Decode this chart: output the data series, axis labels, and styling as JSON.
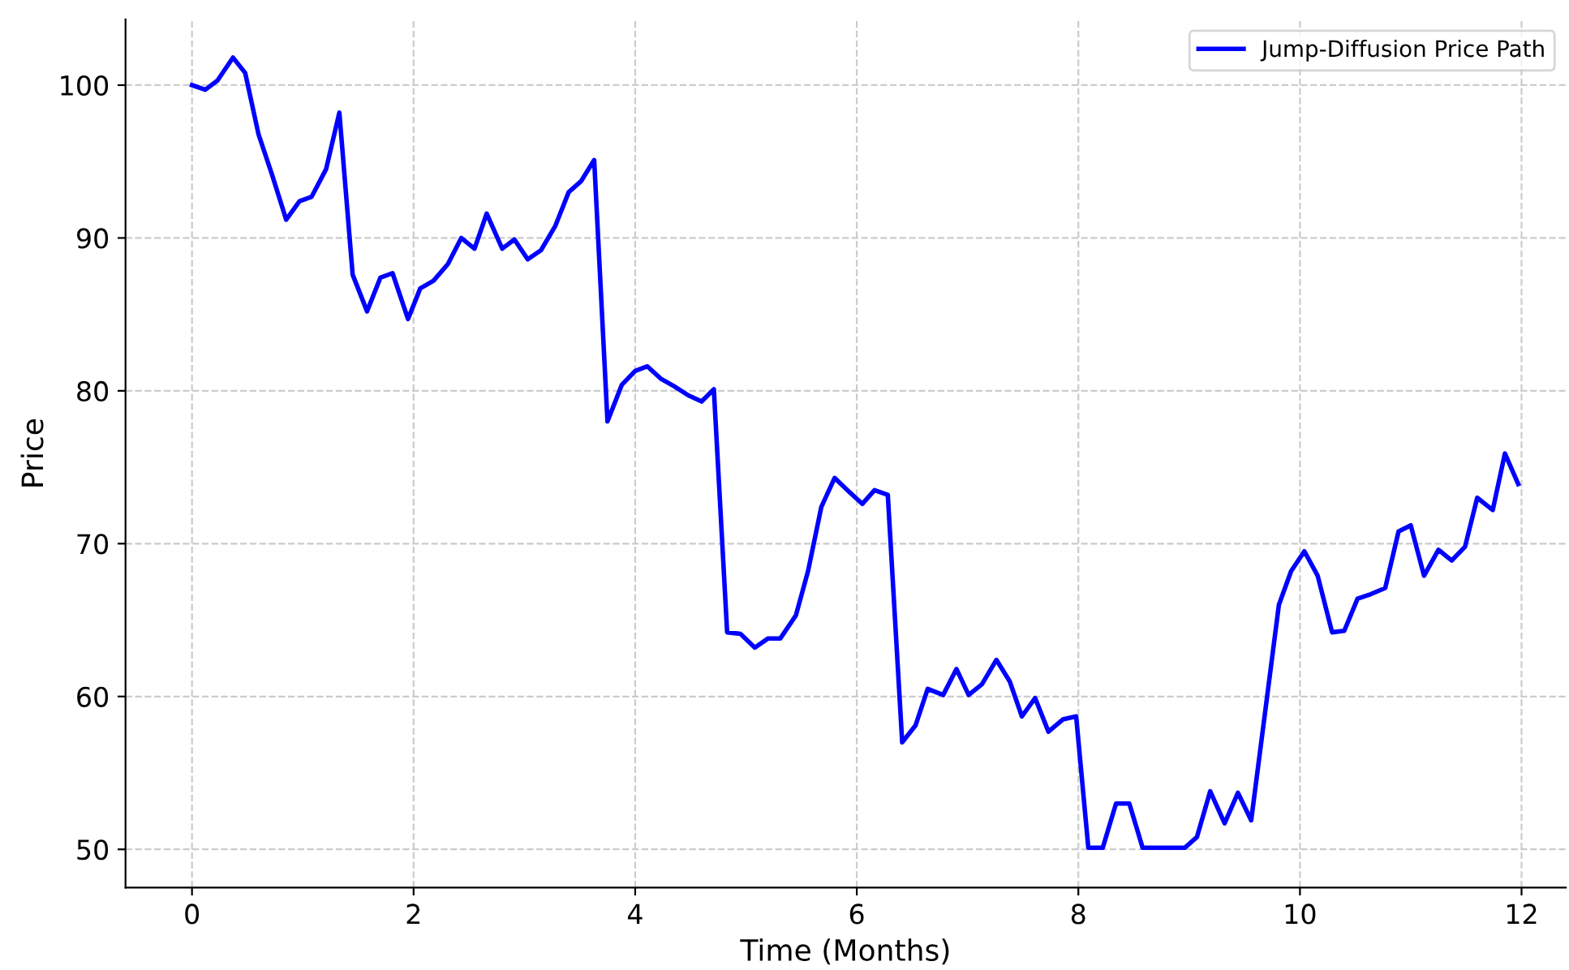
{
  "chart_data": {
    "type": "line",
    "xlabel": "Time (Months)",
    "ylabel": "Price",
    "xlim": [
      -0.6,
      12.4
    ],
    "ylim": [
      47.5,
      104.3
    ],
    "xticks": [
      0,
      2,
      4,
      6,
      8,
      10,
      12
    ],
    "yticks": [
      50,
      60,
      70,
      80,
      90,
      100
    ],
    "grid": true,
    "legend": "top right",
    "line_style": "solid",
    "marker": "none",
    "series": [
      {
        "name": "Jump-Diffusion Price Path",
        "color": "#0000ff",
        "x": [
          0,
          0.12,
          0.23,
          0.37,
          0.48,
          0.6,
          0.72,
          0.85,
          0.97,
          1.08,
          1.21,
          1.33,
          1.45,
          1.58,
          1.7,
          1.81,
          1.95,
          2.06,
          2.18,
          2.31,
          2.43,
          2.55,
          2.66,
          2.8,
          2.91,
          3.03,
          3.15,
          3.28,
          3.4,
          3.51,
          3.63,
          3.75,
          3.88,
          4.0,
          4.11,
          4.23,
          4.35,
          4.48,
          4.6,
          4.71,
          4.83,
          4.95,
          5.08,
          5.2,
          5.31,
          5.45,
          5.56,
          5.68,
          5.8,
          5.93,
          6.05,
          6.16,
          6.28,
          6.41,
          6.53,
          6.64,
          6.78,
          6.9,
          7.01,
          7.13,
          7.26,
          7.38,
          7.49,
          7.61,
          7.73,
          7.86,
          7.98,
          8.09,
          8.22,
          8.34,
          8.46,
          8.58,
          8.7,
          8.83,
          8.96,
          9.07,
          9.19,
          9.32,
          9.44,
          9.56,
          9.67,
          9.81,
          9.92,
          10.04,
          10.16,
          10.29,
          10.4,
          10.52,
          10.64,
          10.77,
          10.89,
          11.0,
          11.12,
          11.25,
          11.37,
          11.49,
          11.6,
          11.74,
          11.85,
          11.97
        ],
        "values": [
          100,
          99.7,
          100.3,
          101.8,
          100.8,
          96.8,
          94.2,
          91.2,
          92.4,
          92.7,
          94.5,
          98.2,
          87.6,
          85.2,
          87.4,
          87.7,
          84.7,
          86.7,
          87.2,
          88.3,
          90,
          89.3,
          91.6,
          89.3,
          89.9,
          88.6,
          89.2,
          90.8,
          93,
          93.7,
          95.1,
          78,
          80.4,
          81.3,
          81.6,
          80.8,
          80.3,
          79.7,
          79.3,
          80.1,
          64.2,
          64.1,
          63.2,
          63.8,
          63.8,
          65.3,
          68.2,
          72.4,
          74.3,
          73.4,
          72.6,
          73.5,
          73.2,
          57.0,
          58.1,
          60.5,
          60.1,
          61.8,
          60.1,
          60.8,
          62.4,
          61.0,
          58.7,
          59.9,
          57.7,
          58.5,
          58.7,
          50.1,
          50.1,
          53,
          53,
          50.1,
          50.1,
          50.1,
          50.1,
          50.8,
          53.8,
          51.7,
          53.7,
          51.9,
          58.1,
          66,
          68.2,
          69.5,
          67.9,
          64.2,
          64.3,
          66.4,
          66.7,
          67.1,
          70.8,
          71.2,
          67.9,
          69.6,
          68.9,
          69.8,
          73,
          72.2,
          75.9,
          73.9
        ]
      }
    ]
  }
}
